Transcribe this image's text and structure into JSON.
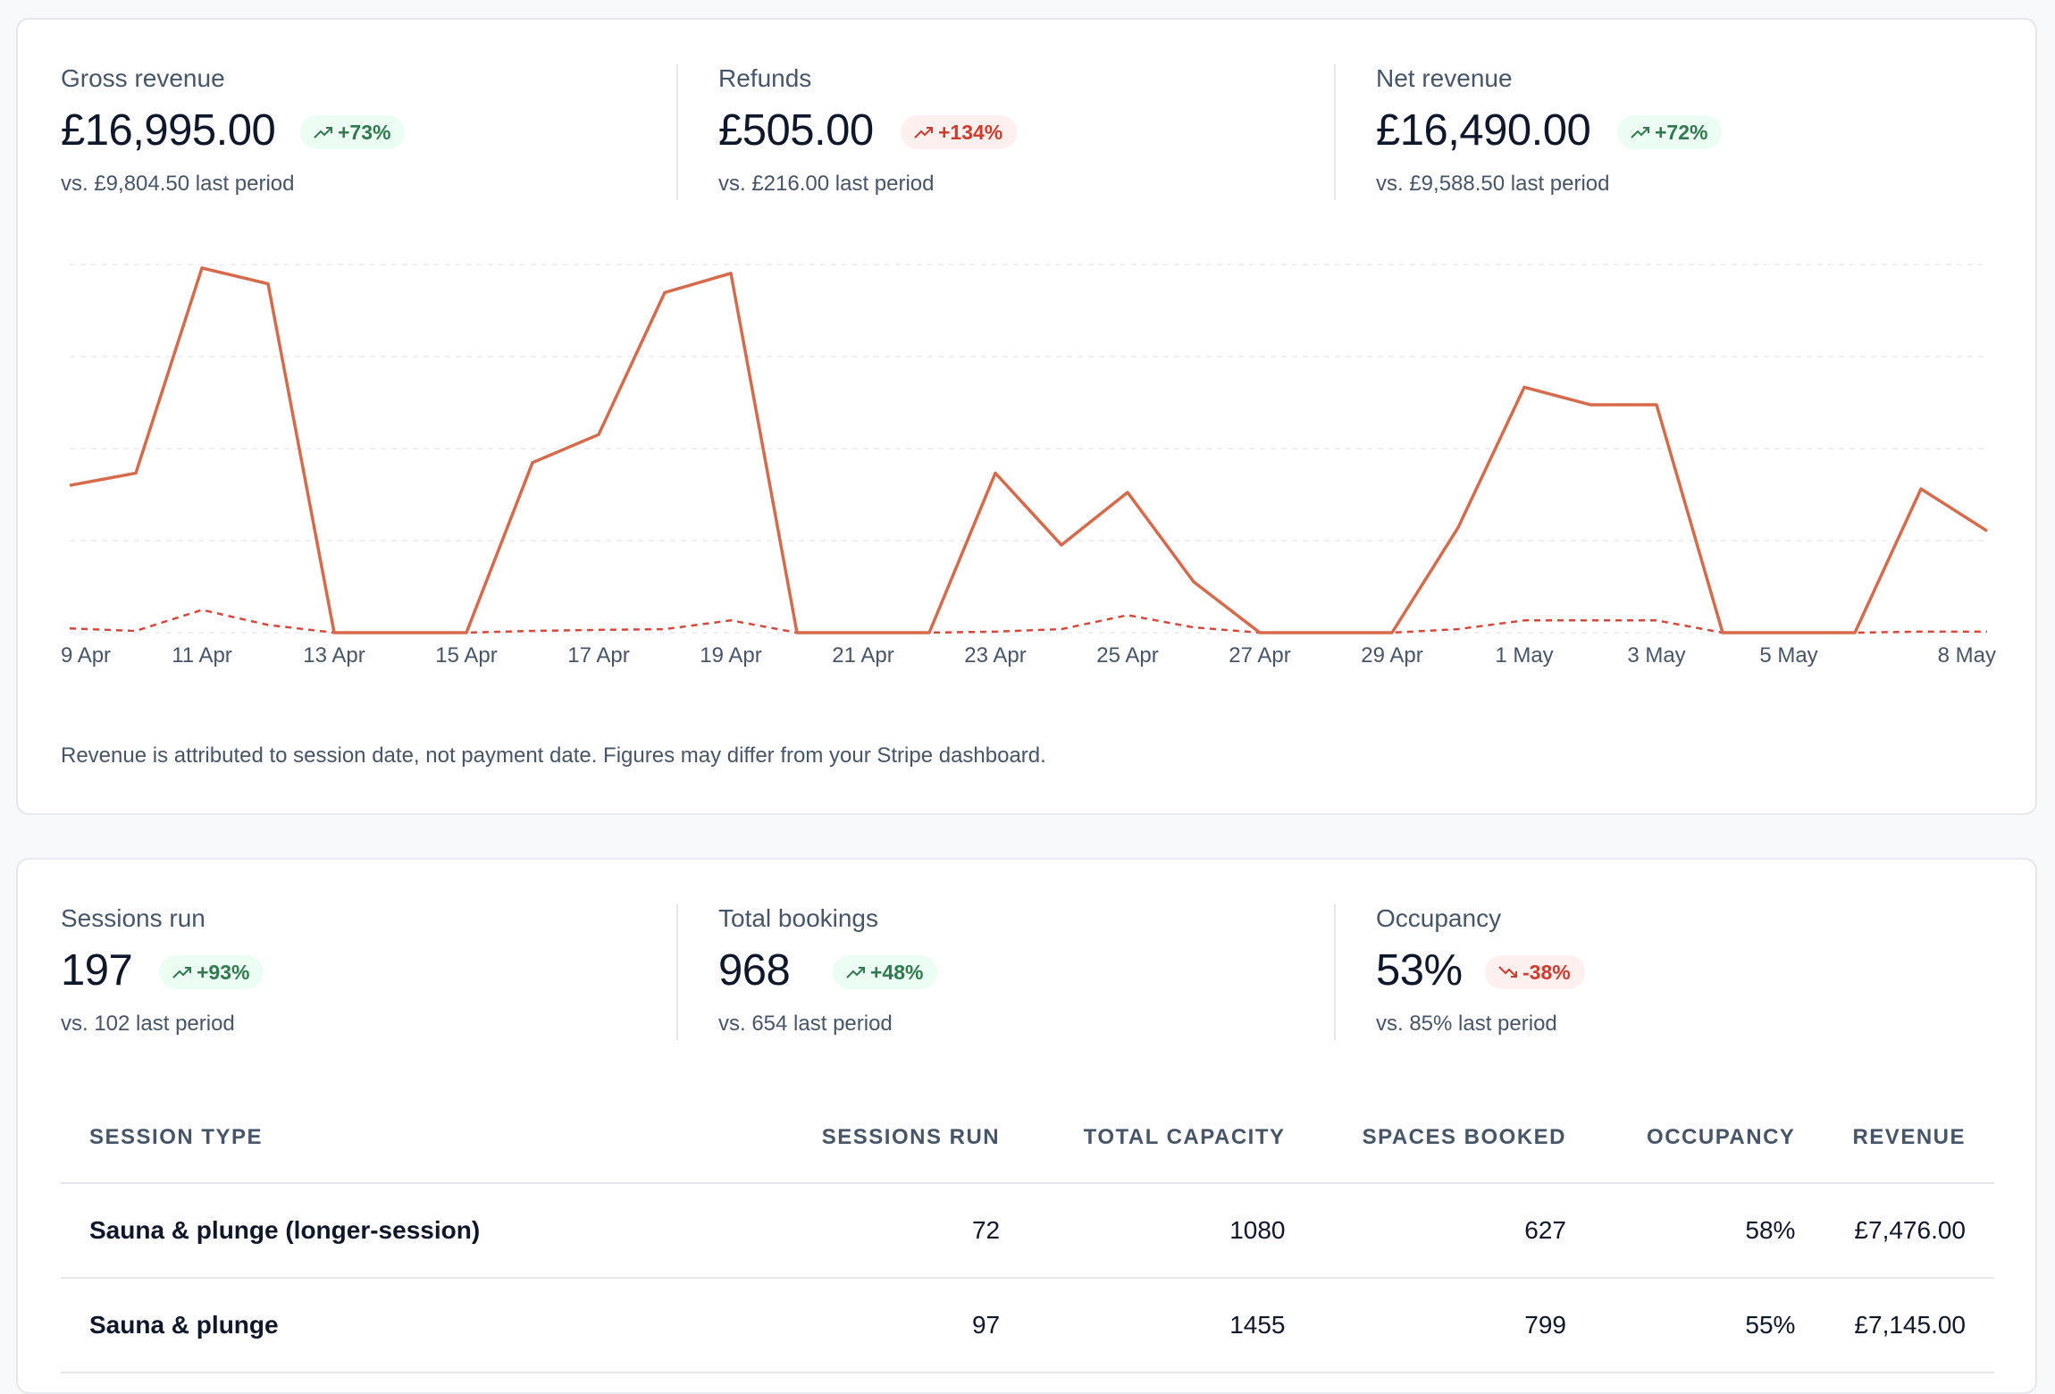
{
  "revenue_stats": [
    {
      "label": "Gross revenue",
      "value": "£16,995.00",
      "change": "+73%",
      "trend": "up",
      "comparison": "vs. £9,804.50 last period"
    },
    {
      "label": "Refunds",
      "value": "£505.00",
      "change": "+134%",
      "trend": "up-bad",
      "comparison": "vs. £216.00 last period"
    },
    {
      "label": "Net revenue",
      "value": "£16,490.00",
      "change": "+72%",
      "trend": "up",
      "comparison": "vs. £9,588.50 last period"
    }
  ],
  "chart_footnote": "Revenue is attributed to session date, not payment date. Figures may differ from your Stripe dashboard.",
  "chart_data": {
    "type": "line",
    "x": [
      "9 Apr",
      "10 Apr",
      "11 Apr",
      "12 Apr",
      "13 Apr",
      "14 Apr",
      "15 Apr",
      "16 Apr",
      "17 Apr",
      "18 Apr",
      "19 Apr",
      "20 Apr",
      "21 Apr",
      "22 Apr",
      "23 Apr",
      "24 Apr",
      "25 Apr",
      "26 Apr",
      "27 Apr",
      "28 Apr",
      "29 Apr",
      "30 Apr",
      "1 May",
      "2 May",
      "3 May",
      "4 May",
      "5 May",
      "6 May",
      "7 May",
      "8 May"
    ],
    "tick_labels": [
      "9 Apr",
      "11 Apr",
      "13 Apr",
      "15 Apr",
      "17 Apr",
      "19 Apr",
      "21 Apr",
      "23 Apr",
      "25 Apr",
      "27 Apr",
      "29 Apr",
      "1 May",
      "3 May",
      "5 May",
      "8 May"
    ],
    "series": [
      {
        "values": [
          420,
          455,
          1040,
          995,
          0,
          0,
          0,
          485,
          565,
          970,
          1025,
          0,
          0,
          0,
          455,
          250,
          400,
          145,
          0,
          0,
          0,
          300,
          700,
          650,
          650,
          0,
          0,
          0,
          410,
          290
        ],
        "color": "#d86a4c",
        "style": "solid"
      },
      {
        "values": [
          12,
          5,
          65,
          22,
          0,
          0,
          0,
          5,
          8,
          10,
          35,
          0,
          0,
          0,
          3,
          10,
          50,
          15,
          0,
          0,
          0,
          10,
          35,
          35,
          35,
          0,
          0,
          0,
          3,
          3
        ],
        "color": "#d9463a",
        "style": "dashed"
      }
    ],
    "ylim": [
      0,
      1050
    ],
    "grid": "horizontal"
  },
  "session_stats": [
    {
      "label": "Sessions run",
      "value": "197",
      "change": "+93%",
      "trend": "up",
      "comparison": "vs. 102 last period"
    },
    {
      "label": "Total bookings",
      "value": "968",
      "change": "+48%",
      "trend": "up",
      "comparison": "vs. 654 last period"
    },
    {
      "label": "Occupancy",
      "value": "53%",
      "change": "-38%",
      "trend": "down",
      "comparison": "vs. 85% last period"
    }
  ],
  "table": {
    "headers": [
      "Session type",
      "Sessions run",
      "Total capacity",
      "Spaces booked",
      "Occupancy",
      "Revenue"
    ],
    "rows": [
      [
        "Sauna & plunge (longer-session)",
        "72",
        "1080",
        "627",
        "58%",
        "£7,476.00"
      ],
      [
        "Sauna & plunge",
        "97",
        "1455",
        "799",
        "55%",
        "£7,145.00"
      ]
    ]
  },
  "colors": {
    "up_text": "#2f7a4f",
    "up_bg": "#ecfdf3",
    "down_text": "#d23a2c",
    "down_bg": "#fef0ef",
    "revenue_line": "#d86a4c",
    "refund_line": "#d9463a"
  },
  "icons": {
    "trend_up": "trending-up-icon",
    "trend_down": "trending-down-icon"
  }
}
